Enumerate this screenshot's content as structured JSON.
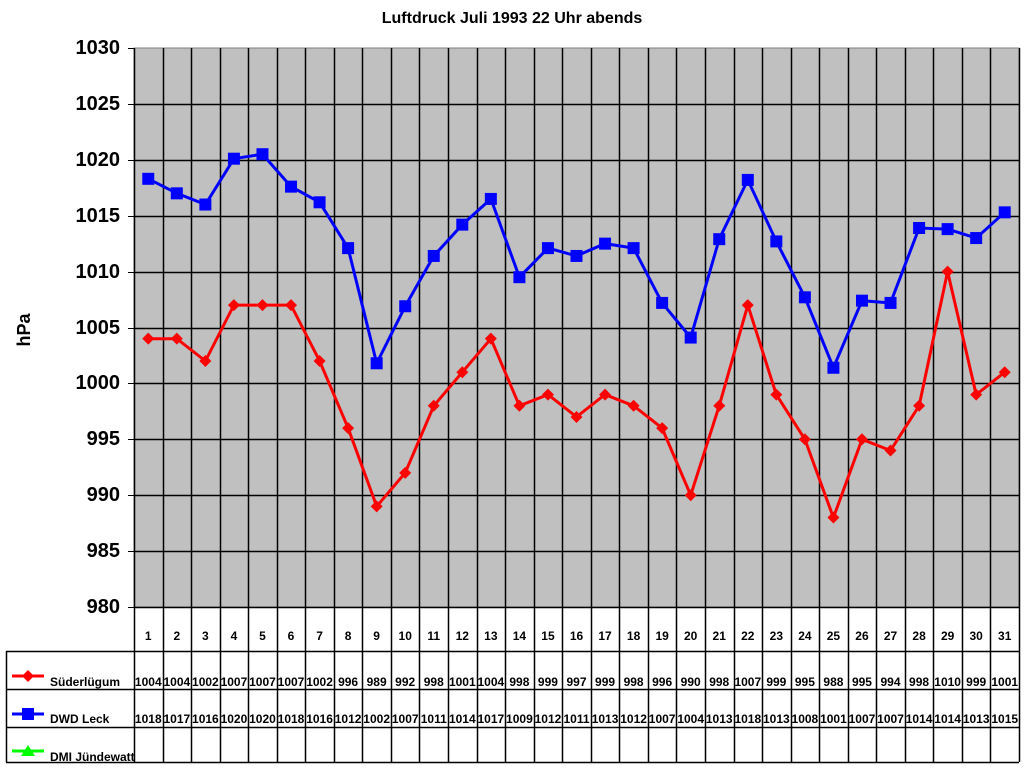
{
  "chart_data": {
    "type": "line",
    "title": "Luftdruck Juli 1993 22 Uhr abends",
    "xlabel": "",
    "ylabel": "hPa",
    "ylim": [
      980,
      1030
    ],
    "yticks": [
      980,
      985,
      990,
      995,
      1000,
      1005,
      1010,
      1015,
      1020,
      1025,
      1030
    ],
    "grid": true,
    "legend_position": "data-table-left",
    "categories": [
      "1",
      "2",
      "3",
      "4",
      "5",
      "6",
      "7",
      "8",
      "9",
      "10",
      "11",
      "12",
      "13",
      "14",
      "15",
      "16",
      "17",
      "18",
      "19",
      "20",
      "21",
      "22",
      "23",
      "24",
      "25",
      "26",
      "27",
      "28",
      "29",
      "30",
      "31"
    ],
    "series": [
      {
        "name": "Süderlügum",
        "color": "#ff0000",
        "marker": "diamond",
        "values": [
          1004,
          1004,
          1002,
          1007,
          1007,
          1007,
          1002,
          996,
          989,
          992,
          998,
          1001,
          1004,
          998,
          999,
          997,
          999,
          998,
          996,
          990,
          998,
          1007,
          999,
          995,
          988,
          995,
          994,
          998,
          1010,
          999,
          1001
        ],
        "plotted": [
          1004,
          1004,
          1002,
          1007,
          1007,
          1007,
          1002,
          996,
          989,
          992,
          998,
          1001,
          1004,
          998,
          999,
          997,
          999,
          998,
          996,
          990,
          998,
          1007,
          999,
          995,
          988,
          995,
          994,
          998,
          1010,
          999,
          1001
        ]
      },
      {
        "name": "DWD Leck",
        "color": "#0000ff",
        "marker": "square",
        "values": [
          1018,
          1017,
          1016,
          1020,
          1020,
          1018,
          1016,
          1012,
          1002,
          1007,
          1011,
          1014,
          1017,
          1009,
          1012,
          1011,
          1013,
          1012,
          1007,
          1004,
          1013,
          1018,
          1013,
          1008,
          1001,
          1007,
          1007,
          1014,
          1014,
          1013,
          1015
        ],
        "plotted": [
          1018.3,
          1017.0,
          1016.0,
          1020.1,
          1020.5,
          1017.6,
          1016.2,
          1012.1,
          1001.8,
          1006.9,
          1011.4,
          1014.2,
          1016.5,
          1009.5,
          1012.1,
          1011.4,
          1012.5,
          1012.1,
          1007.2,
          1004.1,
          1012.9,
          1018.2,
          1012.7,
          1007.7,
          1001.4,
          1007.4,
          1007.2,
          1013.9,
          1013.8,
          1013.0,
          1015.3
        ]
      },
      {
        "name": "DMI Jündewatt",
        "color": "#00ff00",
        "marker": "triangle",
        "values": [],
        "plotted": []
      }
    ]
  },
  "colors": {
    "plot_bg": "#c0c0c0",
    "grid": "#000000"
  }
}
